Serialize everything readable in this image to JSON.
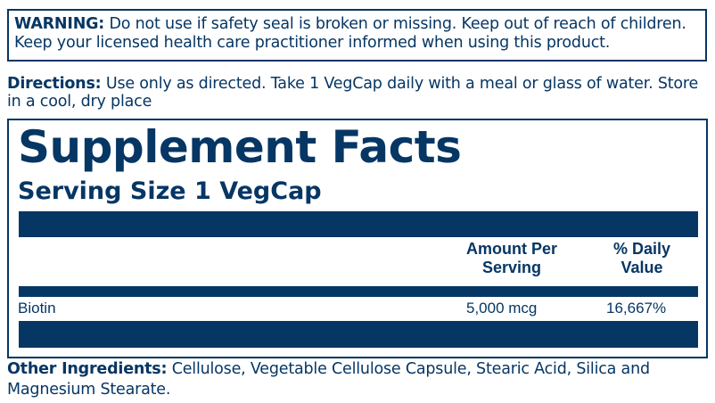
{
  "warning": {
    "label": "WARNING:",
    "line1": "Do not use if safety seal is broken or missing. Keep out of reach of children.",
    "line2": "Keep your licensed health care practitioner informed when using this product."
  },
  "directions": {
    "label": "Directions:",
    "line1": "Use only as directed. Take 1 VegCap daily with a meal or glass of water. Store",
    "line2": "in a cool, dry place"
  },
  "facts": {
    "title": "Supplement Facts",
    "serving_size": "Serving Size 1 VegCap",
    "header": {
      "amount_1": "Amount Per",
      "amount_2": "Serving",
      "dv_1": "% Daily",
      "dv_2": "Value"
    },
    "rows": [
      {
        "name": "Biotin",
        "amount": "5,000 mcg",
        "dv": "16,667%"
      }
    ]
  },
  "other": {
    "label": "Other Ingredients:",
    "line1": "Cellulose, Vegetable Cellulose Capsule, Stearic Acid, Silica and",
    "line2": "Magnesium Stearate."
  },
  "colors": {
    "brand": "#063664"
  }
}
